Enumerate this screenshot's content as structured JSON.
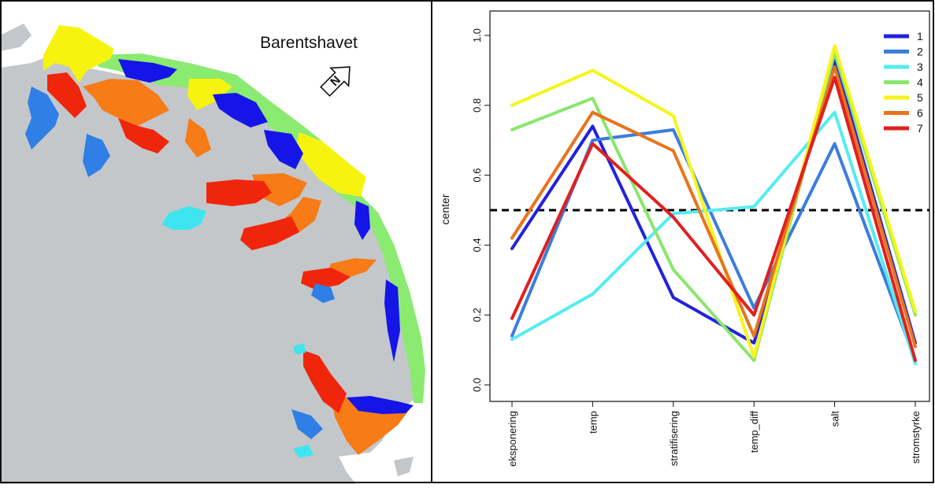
{
  "map": {
    "label": "Barentshavet",
    "compass_letter": "N",
    "colors": {
      "land": "#c3c7ca",
      "sea": "#ffffff",
      "cluster_1": "#1515e8",
      "cluster_2": "#2f7fe6",
      "cluster_3": "#3ee5f0",
      "cluster_4": "#8bea70",
      "cluster_5": "#f6f40f",
      "cluster_6": "#f77b16",
      "cluster_7": "#f0260c"
    }
  },
  "chart_data": {
    "type": "line",
    "ylabel": "center",
    "xlabel": "",
    "ylim": [
      0,
      1
    ],
    "yticks": [
      "0.0",
      "0.2",
      "0.4",
      "0.6",
      "0.8",
      "1.0"
    ],
    "categories": [
      "eksponering",
      "temp",
      "stratifisering",
      "temp_diff",
      "salt",
      "stromstyrke"
    ],
    "reference_line": 0.5,
    "legend_position": "top-right",
    "series": [
      {
        "name": "1",
        "color": "#2222dd",
        "values": [
          0.39,
          0.74,
          0.25,
          0.12,
          0.93,
          0.12
        ]
      },
      {
        "name": "2",
        "color": "#3b7ddd",
        "values": [
          0.14,
          0.7,
          0.73,
          0.22,
          0.69,
          0.07
        ]
      },
      {
        "name": "3",
        "color": "#55ecf2",
        "values": [
          0.13,
          0.26,
          0.49,
          0.51,
          0.78,
          0.06
        ]
      },
      {
        "name": "4",
        "color": "#8ae66e",
        "values": [
          0.73,
          0.82,
          0.33,
          0.07,
          0.95,
          0.2
        ]
      },
      {
        "name": "5",
        "color": "#f5f51a",
        "values": [
          0.8,
          0.9,
          0.77,
          0.08,
          0.97,
          0.21
        ]
      },
      {
        "name": "6",
        "color": "#e8741c",
        "values": [
          0.42,
          0.78,
          0.67,
          0.14,
          0.91,
          0.11
        ]
      },
      {
        "name": "7",
        "color": "#e02020",
        "values": [
          0.19,
          0.69,
          0.48,
          0.2,
          0.88,
          0.07
        ]
      }
    ]
  }
}
